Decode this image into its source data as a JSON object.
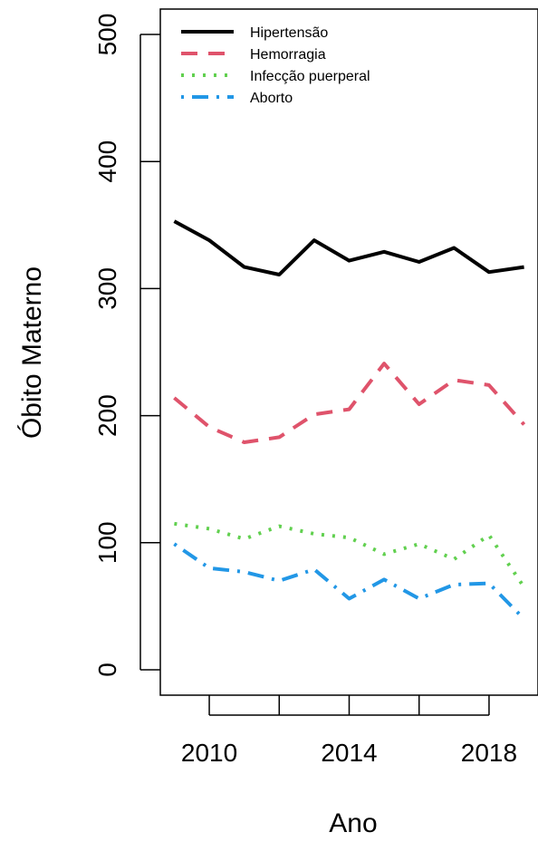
{
  "chart_data": {
    "type": "line",
    "xlabel": "Ano",
    "ylabel": "Óbito Materno",
    "xlim": [
      2008.6,
      2019.4
    ],
    "ylim": [
      -20,
      520
    ],
    "x_ticks": [
      2010,
      2012,
      2014,
      2016,
      2018
    ],
    "x_tick_labels": [
      "2010",
      "",
      "2014",
      "",
      "2018"
    ],
    "y_ticks": [
      0,
      100,
      200,
      300,
      400,
      500
    ],
    "y_tick_labels": [
      "0",
      "100",
      "200",
      "300",
      "400",
      "500"
    ],
    "grid": false,
    "legend_position": "top-left",
    "x": [
      2009,
      2010,
      2011,
      2012,
      2013,
      2014,
      2015,
      2016,
      2017,
      2018,
      2019
    ],
    "series": [
      {
        "name": "Hipertensão",
        "color": "#000000",
        "dash": "solid",
        "values": [
          353,
          338,
          317,
          311,
          338,
          322,
          329,
          321,
          332,
          313,
          317
        ]
      },
      {
        "name": "Hemorragia",
        "color": "#DF536B",
        "dash": "dashed",
        "values": [
          214,
          191,
          179,
          183,
          201,
          205,
          241,
          209,
          228,
          224,
          193
        ]
      },
      {
        "name": "Infecção puerperal",
        "color": "#61D04F",
        "dash": "dotted",
        "values": [
          115,
          111,
          103,
          113,
          107,
          104,
          91,
          99,
          87,
          106,
          65
        ]
      },
      {
        "name": "Aborto",
        "color": "#2297E6",
        "dash": "dotdash",
        "values": [
          99,
          80,
          77,
          70,
          79,
          56,
          71,
          56,
          67,
          68,
          40
        ]
      }
    ]
  }
}
